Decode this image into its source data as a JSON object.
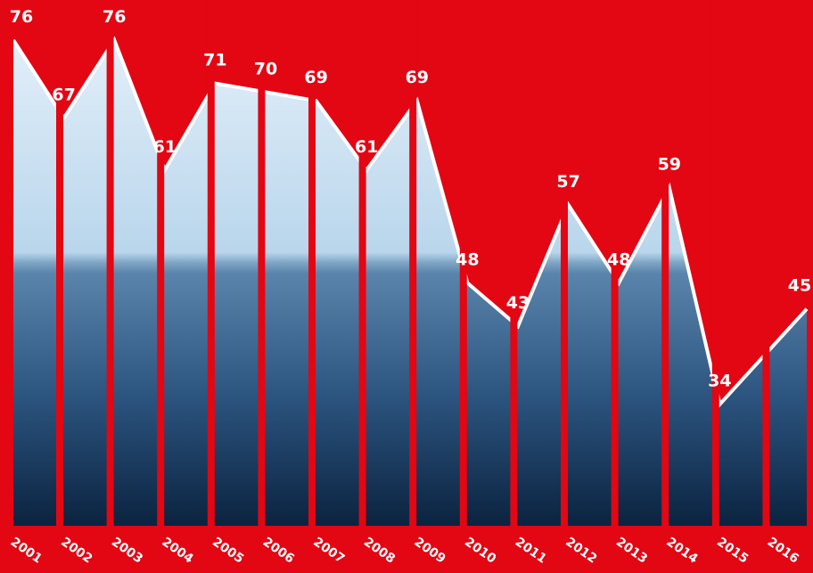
{
  "chart_data": {
    "type": "area",
    "categories": [
      "2001",
      "2002",
      "2003",
      "2004",
      "2005",
      "2006",
      "2007",
      "2008",
      "2009",
      "2010",
      "2011",
      "2012",
      "2013",
      "2014",
      "2015",
      "2016"
    ],
    "values": [
      76,
      67,
      76,
      61,
      71,
      70,
      69,
      61,
      69,
      48,
      43,
      57,
      48,
      59,
      34,
      45
    ],
    "color": "#ffffff",
    "background": "#e30613",
    "ylim": [
      20,
      80
    ]
  }
}
